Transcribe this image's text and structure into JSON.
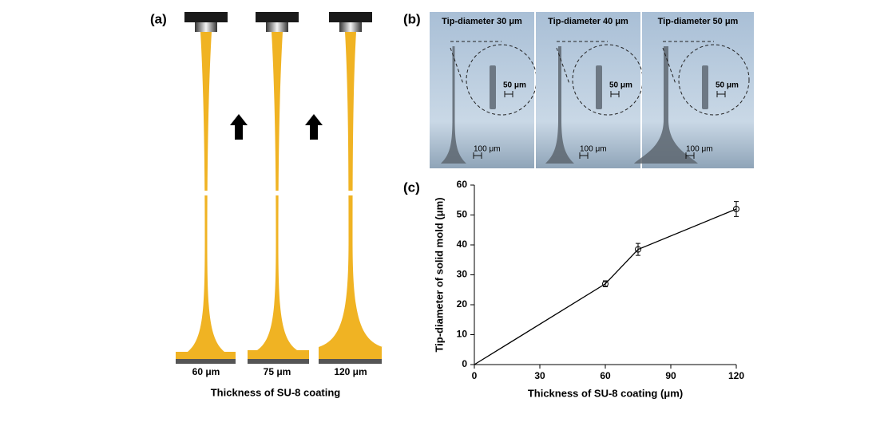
{
  "panel_a": {
    "label": "(a)",
    "thickness_labels": [
      "60 μm",
      "75 μm",
      "120 μm"
    ],
    "caption": "Thickness of SU-8 coating"
  },
  "panel_b": {
    "label": "(b)",
    "titles": [
      "Tip-diameter 30 μm",
      "Tip-diameter 40 μm",
      "Tip-diameter 50 μm"
    ],
    "inset_scale": "50 μm",
    "main_scale": "100 μm"
  },
  "chart_data": {
    "type": "line",
    "panel_label": "(c)",
    "x_label": "Thickness of SU-8 coating (μm)",
    "y_label": "Tip-diameter of solid mold (μm)",
    "x": [
      0,
      60,
      75,
      120
    ],
    "series": [
      {
        "color": "#000000",
        "values": [
          0,
          27,
          38.5,
          52
        ],
        "errors": [
          0,
          1,
          2,
          2.5
        ]
      }
    ],
    "xlim": [
      0,
      120
    ],
    "xticks": [
      0,
      30,
      60,
      90,
      120
    ],
    "ylim": [
      0,
      60
    ],
    "yticks": [
      0,
      10,
      20,
      30,
      40,
      50,
      60
    ]
  }
}
